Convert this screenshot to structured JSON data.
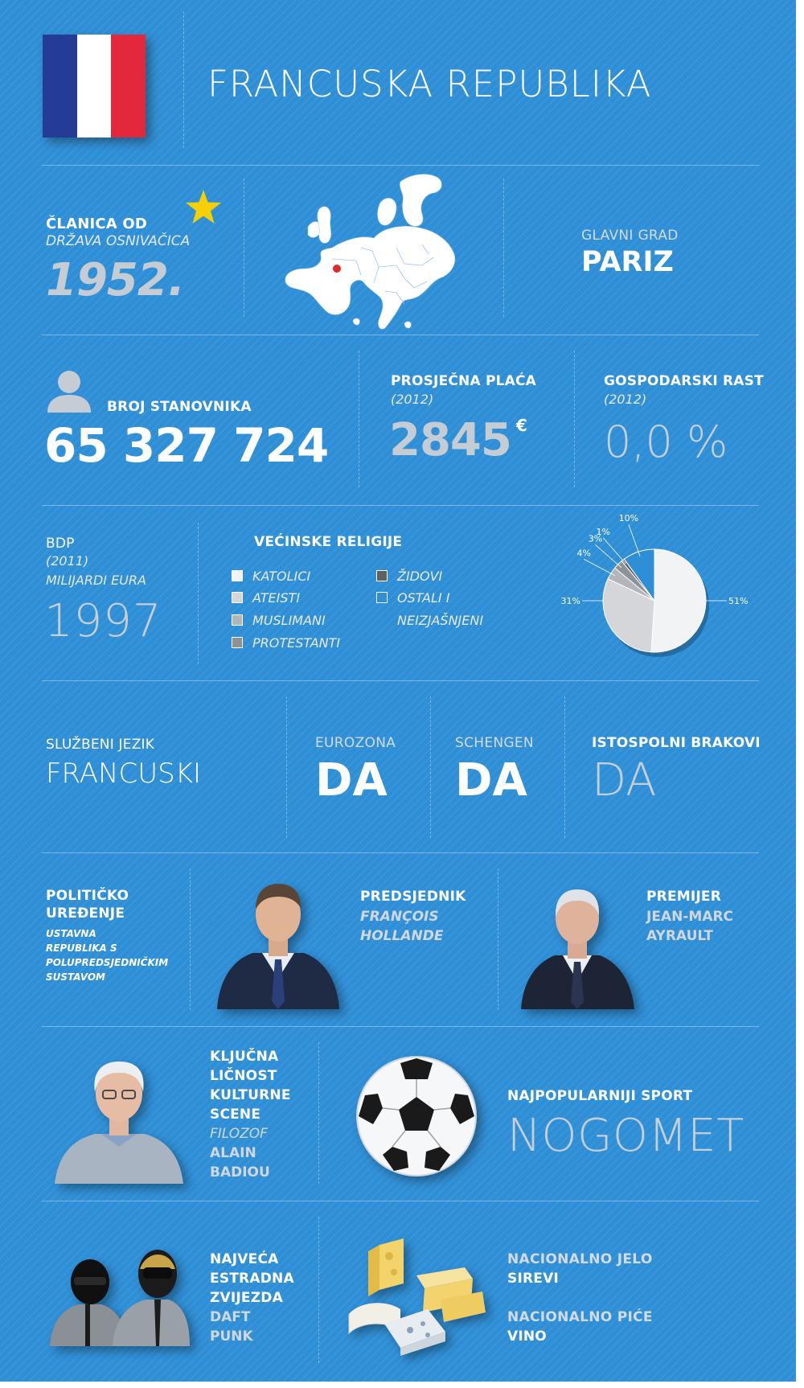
{
  "header": {
    "title": "FRANCUSKA REPUBLIKA",
    "flag_colors": [
      "#243c96",
      "#ffffff",
      "#e4283c"
    ]
  },
  "membership": {
    "label": "ČLANICA OD",
    "sublabel": "DRŽAVA OSNIVAČICA",
    "year": "1952.",
    "star_color": "#f6d000"
  },
  "map": {
    "icon": "europe-map-icon",
    "marker_color": "#e02a2a"
  },
  "capital": {
    "label": "GLAVNI GRAD",
    "value": "PARIZ"
  },
  "population": {
    "icon": "person-icon",
    "label": "BROJ STANOVNIKA",
    "value": "65 327 724"
  },
  "salary": {
    "label": "PROSJEČNA PLAĆA",
    "year": "(2012)",
    "value": "2845",
    "unit": "€"
  },
  "growth": {
    "label": "GOSPODARSKI RAST",
    "year": "(2012)",
    "value": "0,0 %"
  },
  "gdp": {
    "label": "BDP",
    "year": "(2011)",
    "unit": "MILIJARDI EURA",
    "value": "1997"
  },
  "religions": {
    "title": "VEĆINSKE RELIGIJE",
    "legend": [
      {
        "label": "KATOLICI",
        "color": "#f2f3f5"
      },
      {
        "label": "ATEISTI",
        "color": "#d4d6d9"
      },
      {
        "label": "MUSLIMANI",
        "color": "#b2b5b9"
      },
      {
        "label": "PROTESTANTI",
        "color": "#8e9196"
      },
      {
        "label": "ŽIDOVI",
        "color": "#5d6065"
      },
      {
        "label": "OSTALI I",
        "color": "#2f8fd6"
      },
      {
        "label": "NEIZJAŠNJENI",
        "color": ""
      }
    ]
  },
  "chart_data": {
    "type": "pie",
    "categories": [
      "KATOLICI",
      "ATEISTI",
      "MUSLIMANI",
      "PROTESTANTI",
      "ŽIDOVI",
      "OSTALI I NEIZJAŠNJENI"
    ],
    "values": [
      51,
      31,
      4,
      3,
      1,
      10
    ],
    "labels": [
      "51%",
      "31%",
      "4%",
      "3%",
      "1%",
      "10%"
    ],
    "colors": [
      "#f2f3f5",
      "#d4d6d9",
      "#b2b5b9",
      "#8e9196",
      "#5d6065",
      "#2f8fd6"
    ]
  },
  "language": {
    "label": "SLUŽBENI JEZIK",
    "value": "FRANCUSKI"
  },
  "eurozone": {
    "label": "EUROZONA",
    "value": "DA"
  },
  "schengen": {
    "label": "SCHENGEN",
    "value": "DA"
  },
  "marriage": {
    "label": "ISTOSPOLNI BRAKOVI",
    "value": "DA"
  },
  "politics": {
    "label_line1": "POLITIČKO",
    "label_line2": "UREĐENJE",
    "desc_line1": "USTAVNA",
    "desc_line2": "REPUBLIKA S",
    "desc_line3": "POLUPREDSJEDNIČKIM",
    "desc_line4": "SUSTAVOM"
  },
  "president": {
    "label": "PREDSJEDNIK",
    "name_line1": "FRANÇOIS",
    "name_line2": "HOLLANDE"
  },
  "premier": {
    "label": "PREMIJER",
    "name_line1": "JEAN-MARC",
    "name_line2": "AYRAULT"
  },
  "culture": {
    "line1": "KLJUČNA",
    "line2": "LIČNOST",
    "line3": "KULTURNE",
    "line4": "SCENE",
    "role": "FILOZOF",
    "name_line1": "ALAIN",
    "name_line2": "BADIOU"
  },
  "sport": {
    "label": "NAJPOPULARNIJI SPORT",
    "value": "NOGOMET"
  },
  "star": {
    "line1": "NAJVEĆA",
    "line2": "ESTRADNA",
    "line3": "ZVIJEZDA",
    "name_line1": "DAFT",
    "name_line2": "PUNK"
  },
  "food": {
    "dish_label": "NACIONALNO JELO",
    "dish_value": "SIREVI",
    "drink_label": "NACIONALNO PIĆE",
    "drink_value": "VINO"
  }
}
